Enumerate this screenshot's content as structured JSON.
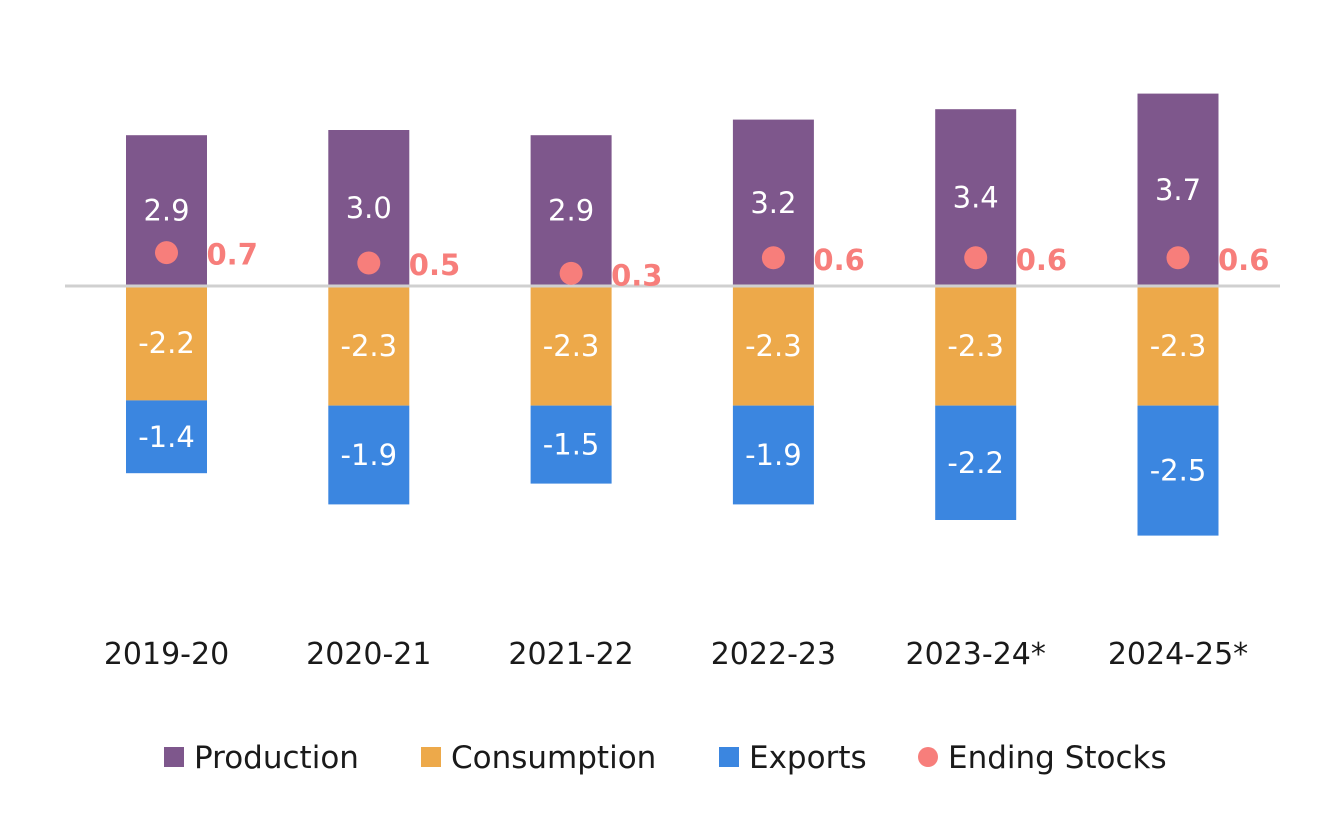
{
  "chart_data": {
    "type": "bar",
    "stacked": true,
    "categories": [
      "2019-20",
      "2020-21",
      "2021-22",
      "2022-23",
      "2023-24*",
      "2024-25*"
    ],
    "series": [
      {
        "name": "Production",
        "kind": "bar",
        "color": "#7e578c",
        "values": [
          2.9,
          3.0,
          2.9,
          3.2,
          3.4,
          3.7
        ]
      },
      {
        "name": "Consumption",
        "kind": "bar",
        "color": "#eda94a",
        "values": [
          -2.2,
          -2.3,
          -2.3,
          -2.3,
          -2.3,
          -2.3
        ]
      },
      {
        "name": "Exports",
        "kind": "bar",
        "color": "#3b86e0",
        "values": [
          -1.4,
          -1.9,
          -1.5,
          -1.9,
          -2.2,
          -2.5
        ]
      },
      {
        "name": "Ending Stocks",
        "kind": "point",
        "color": "#f77e7b",
        "values": [
          0.7,
          0.5,
          0.3,
          0.6,
          0.6,
          0.6
        ]
      }
    ],
    "ylim": [
      -4.8,
      4.0
    ],
    "grid": false,
    "legend": "bottom",
    "title": "",
    "xlabel": "",
    "ylabel": ""
  }
}
